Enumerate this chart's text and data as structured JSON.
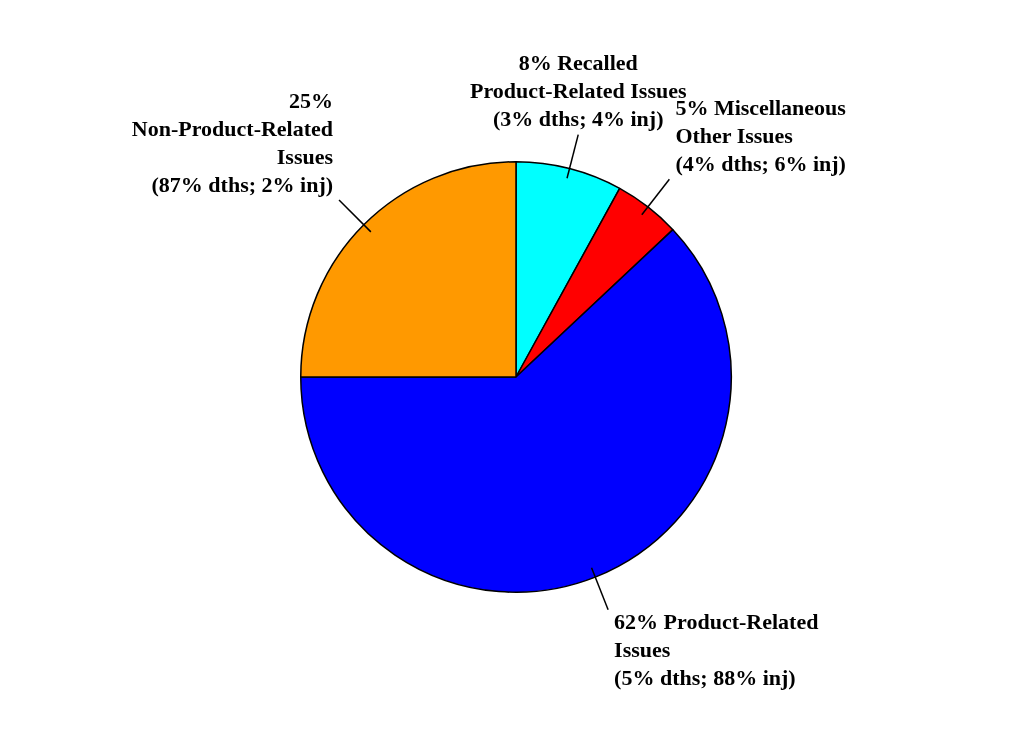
{
  "chart_data": {
    "type": "pie",
    "categories": [
      "Recalled Product-Related Issues",
      "Miscellaneous Other Issues",
      "Product-Related Issues",
      "Non-Product-Related Issues"
    ],
    "values": [
      8,
      5,
      62,
      25
    ],
    "value_labels": [
      "8%",
      "5%",
      "62%",
      "25%"
    ],
    "colors": [
      "#00ffff",
      "#ff0000",
      "#0000ff",
      "#ff9900"
    ],
    "annotations": [
      "(3% dths; 4% inj)",
      "(4% dths; 6% inj)",
      "(5% dths; 88% inj)",
      "(87% dths; 2% inj)"
    ],
    "legend": false
  }
}
